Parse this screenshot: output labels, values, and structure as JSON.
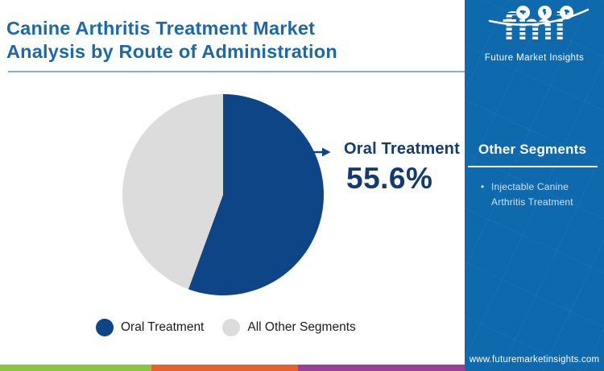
{
  "header": {
    "title_line1": "Canine Arthritis Treatment Market",
    "title_line2": "Analysis by Route of Administration"
  },
  "chart_data": {
    "type": "pie",
    "title": "Canine Arthritis Treatment Market Analysis by Route of Administration",
    "slices": [
      {
        "label": "Oral Treatment",
        "value": 55.6,
        "color": "#0d4586"
      },
      {
        "label": "All Other Segments",
        "value": 44.4,
        "color": "#dcdcdc"
      }
    ],
    "start_angle_deg": 0,
    "direction": "clockwise",
    "callout": {
      "label": "Oral Treatment",
      "value_label": "55.6%"
    },
    "legend_position": "bottom"
  },
  "sidebar": {
    "logo": {
      "text": "fmi",
      "tagline": "Future Market Insights",
      "icons": [
        "globe-americas-icon",
        "globe-europe-icon",
        "globe-asia-icon"
      ]
    },
    "other_segments": {
      "heading": "Other Segments",
      "items": [
        "Injectable Canine Arthritis Treatment"
      ]
    },
    "website": "www.futuremarketinsights.com"
  },
  "footer": {
    "stripe_colors": [
      "#8cc540",
      "#e8612c",
      "#9b3f98"
    ]
  },
  "colors": {
    "title_blue": "#1b6aa7",
    "separator_blue": "#8cabc9",
    "label_navy": "#153a70",
    "sidebar_blue": "#0f6aad",
    "pie_blue": "#0d4586",
    "pie_gray": "#dcdcdc"
  }
}
